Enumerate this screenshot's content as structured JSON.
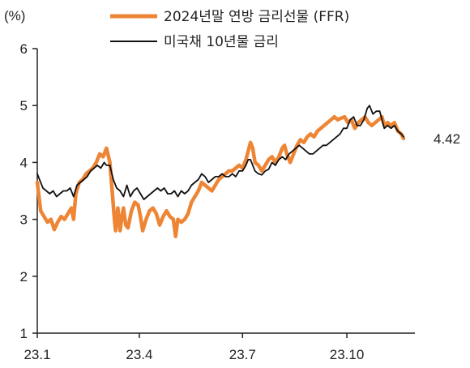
{
  "chart_data": {
    "type": "line",
    "title": "",
    "unit_label": "(%)",
    "xlabel": "",
    "ylabel": "",
    "ylim": [
      1,
      6
    ],
    "yticks": [
      1,
      2,
      3,
      4,
      5,
      6
    ],
    "xlim": [
      "2023-01-01",
      "2023-11-30"
    ],
    "xticks": [
      {
        "label": "23.1",
        "date": "2023-01-01"
      },
      {
        "label": "23.4",
        "date": "2023-04-01"
      },
      {
        "label": "23.7",
        "date": "2023-07-01"
      },
      {
        "label": "23.10",
        "date": "2023-10-01"
      }
    ],
    "grid": false,
    "legend_position": "top-center",
    "end_label": "4.42",
    "series": [
      {
        "name": "2024년말 연방 금리선물 (FFR)",
        "color": "#ee8535",
        "points": [
          [
            "2023-01-01",
            3.65
          ],
          [
            "2023-01-04",
            3.15
          ],
          [
            "2023-01-07",
            3.05
          ],
          [
            "2023-01-10",
            2.95
          ],
          [
            "2023-01-13",
            3.0
          ],
          [
            "2023-01-16",
            2.82
          ],
          [
            "2023-01-19",
            2.95
          ],
          [
            "2023-01-22",
            3.05
          ],
          [
            "2023-01-25",
            3.0
          ],
          [
            "2023-01-28",
            3.1
          ],
          [
            "2023-01-31",
            3.2
          ],
          [
            "2023-02-02",
            3.0
          ],
          [
            "2023-02-04",
            3.45
          ],
          [
            "2023-02-07",
            3.65
          ],
          [
            "2023-02-10",
            3.7
          ],
          [
            "2023-02-13",
            3.8
          ],
          [
            "2023-02-16",
            3.85
          ],
          [
            "2023-02-19",
            3.9
          ],
          [
            "2023-02-22",
            4.0
          ],
          [
            "2023-02-25",
            4.15
          ],
          [
            "2023-02-28",
            4.1
          ],
          [
            "2023-03-03",
            4.25
          ],
          [
            "2023-03-06",
            4.0
          ],
          [
            "2023-03-08",
            3.5
          ],
          [
            "2023-03-10",
            3.0
          ],
          [
            "2023-03-11",
            2.8
          ],
          [
            "2023-03-13",
            3.2
          ],
          [
            "2023-03-15",
            2.8
          ],
          [
            "2023-03-17",
            3.1
          ],
          [
            "2023-03-18",
            3.2
          ],
          [
            "2023-03-20",
            2.9
          ],
          [
            "2023-03-22",
            2.85
          ],
          [
            "2023-03-25",
            3.15
          ],
          [
            "2023-03-28",
            3.3
          ],
          [
            "2023-03-31",
            3.25
          ],
          [
            "2023-04-02",
            3.05
          ],
          [
            "2023-04-04",
            2.8
          ],
          [
            "2023-04-07",
            3.0
          ],
          [
            "2023-04-10",
            3.15
          ],
          [
            "2023-04-13",
            3.2
          ],
          [
            "2023-04-16",
            3.1
          ],
          [
            "2023-04-19",
            2.9
          ],
          [
            "2023-04-22",
            3.05
          ],
          [
            "2023-04-25",
            3.15
          ],
          [
            "2023-04-28",
            3.05
          ],
          [
            "2023-05-01",
            3.0
          ],
          [
            "2023-05-03",
            2.7
          ],
          [
            "2023-05-05",
            3.0
          ],
          [
            "2023-05-08",
            2.95
          ],
          [
            "2023-05-11",
            3.0
          ],
          [
            "2023-05-14",
            3.1
          ],
          [
            "2023-05-17",
            3.3
          ],
          [
            "2023-05-20",
            3.4
          ],
          [
            "2023-05-23",
            3.5
          ],
          [
            "2023-05-26",
            3.65
          ],
          [
            "2023-05-29",
            3.6
          ],
          [
            "2023-06-01",
            3.55
          ],
          [
            "2023-06-04",
            3.5
          ],
          [
            "2023-06-07",
            3.6
          ],
          [
            "2023-06-10",
            3.7
          ],
          [
            "2023-06-13",
            3.75
          ],
          [
            "2023-06-16",
            3.8
          ],
          [
            "2023-06-19",
            3.85
          ],
          [
            "2023-06-22",
            3.85
          ],
          [
            "2023-06-25",
            3.9
          ],
          [
            "2023-06-28",
            3.95
          ],
          [
            "2023-07-01",
            3.9
          ],
          [
            "2023-07-04",
            4.05
          ],
          [
            "2023-07-06",
            4.2
          ],
          [
            "2023-07-08",
            4.35
          ],
          [
            "2023-07-10",
            4.25
          ],
          [
            "2023-07-12",
            4.0
          ],
          [
            "2023-07-15",
            3.95
          ],
          [
            "2023-07-18",
            3.85
          ],
          [
            "2023-07-21",
            3.95
          ],
          [
            "2023-07-24",
            4.05
          ],
          [
            "2023-07-27",
            4.1
          ],
          [
            "2023-07-30",
            4.0
          ],
          [
            "2023-08-02",
            4.1
          ],
          [
            "2023-08-05",
            4.25
          ],
          [
            "2023-08-07",
            4.3
          ],
          [
            "2023-08-09",
            4.15
          ],
          [
            "2023-08-12",
            4.0
          ],
          [
            "2023-08-15",
            4.15
          ],
          [
            "2023-08-18",
            4.3
          ],
          [
            "2023-08-21",
            4.4
          ],
          [
            "2023-08-24",
            4.35
          ],
          [
            "2023-08-27",
            4.45
          ],
          [
            "2023-08-30",
            4.5
          ],
          [
            "2023-09-02",
            4.45
          ],
          [
            "2023-09-05",
            4.55
          ],
          [
            "2023-09-08",
            4.6
          ],
          [
            "2023-09-11",
            4.65
          ],
          [
            "2023-09-14",
            4.7
          ],
          [
            "2023-09-17",
            4.75
          ],
          [
            "2023-09-20",
            4.8
          ],
          [
            "2023-09-23",
            4.75
          ],
          [
            "2023-09-26",
            4.78
          ],
          [
            "2023-09-29",
            4.8
          ],
          [
            "2023-10-02",
            4.7
          ],
          [
            "2023-10-05",
            4.75
          ],
          [
            "2023-10-08",
            4.6
          ],
          [
            "2023-10-11",
            4.7
          ],
          [
            "2023-10-14",
            4.75
          ],
          [
            "2023-10-17",
            4.8
          ],
          [
            "2023-10-20",
            4.7
          ],
          [
            "2023-10-23",
            4.65
          ],
          [
            "2023-10-26",
            4.7
          ],
          [
            "2023-10-29",
            4.75
          ],
          [
            "2023-11-01",
            4.8
          ],
          [
            "2023-11-03",
            4.65
          ],
          [
            "2023-11-06",
            4.7
          ],
          [
            "2023-11-09",
            4.65
          ],
          [
            "2023-11-12",
            4.7
          ],
          [
            "2023-11-15",
            4.55
          ],
          [
            "2023-11-18",
            4.5
          ],
          [
            "2023-11-20",
            4.42
          ]
        ]
      },
      {
        "name": "미국채 10년물 금리",
        "color": "#111111",
        "points": [
          [
            "2023-01-01",
            3.8
          ],
          [
            "2023-01-03",
            3.7
          ],
          [
            "2023-01-06",
            3.55
          ],
          [
            "2023-01-09",
            3.5
          ],
          [
            "2023-01-12",
            3.45
          ],
          [
            "2023-01-15",
            3.5
          ],
          [
            "2023-01-18",
            3.4
          ],
          [
            "2023-01-21",
            3.45
          ],
          [
            "2023-01-24",
            3.5
          ],
          [
            "2023-01-27",
            3.5
          ],
          [
            "2023-01-30",
            3.55
          ],
          [
            "2023-02-02",
            3.4
          ],
          [
            "2023-02-05",
            3.6
          ],
          [
            "2023-02-08",
            3.65
          ],
          [
            "2023-02-11",
            3.7
          ],
          [
            "2023-02-14",
            3.75
          ],
          [
            "2023-02-17",
            3.85
          ],
          [
            "2023-02-20",
            3.9
          ],
          [
            "2023-02-23",
            3.95
          ],
          [
            "2023-02-26",
            3.9
          ],
          [
            "2023-03-01",
            4.0
          ],
          [
            "2023-03-03",
            3.95
          ],
          [
            "2023-03-06",
            3.95
          ],
          [
            "2023-03-09",
            3.7
          ],
          [
            "2023-03-12",
            3.55
          ],
          [
            "2023-03-15",
            3.5
          ],
          [
            "2023-03-18",
            3.4
          ],
          [
            "2023-03-21",
            3.6
          ],
          [
            "2023-03-24",
            3.4
          ],
          [
            "2023-03-27",
            3.5
          ],
          [
            "2023-03-30",
            3.55
          ],
          [
            "2023-04-02",
            3.45
          ],
          [
            "2023-04-05",
            3.35
          ],
          [
            "2023-04-08",
            3.4
          ],
          [
            "2023-04-11",
            3.45
          ],
          [
            "2023-04-14",
            3.5
          ],
          [
            "2023-04-17",
            3.55
          ],
          [
            "2023-04-20",
            3.5
          ],
          [
            "2023-04-23",
            3.55
          ],
          [
            "2023-04-26",
            3.45
          ],
          [
            "2023-04-29",
            3.45
          ],
          [
            "2023-05-02",
            3.5
          ],
          [
            "2023-05-05",
            3.4
          ],
          [
            "2023-05-08",
            3.5
          ],
          [
            "2023-05-11",
            3.45
          ],
          [
            "2023-05-14",
            3.5
          ],
          [
            "2023-05-17",
            3.6
          ],
          [
            "2023-05-20",
            3.65
          ],
          [
            "2023-05-23",
            3.7
          ],
          [
            "2023-05-26",
            3.8
          ],
          [
            "2023-05-29",
            3.75
          ],
          [
            "2023-06-01",
            3.65
          ],
          [
            "2023-06-04",
            3.7
          ],
          [
            "2023-06-07",
            3.75
          ],
          [
            "2023-06-10",
            3.75
          ],
          [
            "2023-06-13",
            3.8
          ],
          [
            "2023-06-16",
            3.75
          ],
          [
            "2023-06-19",
            3.75
          ],
          [
            "2023-06-22",
            3.8
          ],
          [
            "2023-06-25",
            3.75
          ],
          [
            "2023-06-28",
            3.85
          ],
          [
            "2023-07-01",
            3.85
          ],
          [
            "2023-07-04",
            3.95
          ],
          [
            "2023-07-06",
            4.05
          ],
          [
            "2023-07-08",
            4.05
          ],
          [
            "2023-07-10",
            3.95
          ],
          [
            "2023-07-12",
            3.85
          ],
          [
            "2023-07-15",
            3.8
          ],
          [
            "2023-07-18",
            3.78
          ],
          [
            "2023-07-21",
            3.85
          ],
          [
            "2023-07-24",
            3.88
          ],
          [
            "2023-07-27",
            4.0
          ],
          [
            "2023-07-30",
            3.95
          ],
          [
            "2023-08-02",
            4.05
          ],
          [
            "2023-08-05",
            4.1
          ],
          [
            "2023-08-08",
            4.05
          ],
          [
            "2023-08-11",
            4.15
          ],
          [
            "2023-08-14",
            4.2
          ],
          [
            "2023-08-17",
            4.25
          ],
          [
            "2023-08-20",
            4.3
          ],
          [
            "2023-08-23",
            4.25
          ],
          [
            "2023-08-26",
            4.2
          ],
          [
            "2023-08-29",
            4.15
          ],
          [
            "2023-09-01",
            4.15
          ],
          [
            "2023-09-04",
            4.2
          ],
          [
            "2023-09-07",
            4.25
          ],
          [
            "2023-09-10",
            4.3
          ],
          [
            "2023-09-13",
            4.3
          ],
          [
            "2023-09-16",
            4.35
          ],
          [
            "2023-09-19",
            4.4
          ],
          [
            "2023-09-22",
            4.45
          ],
          [
            "2023-09-25",
            4.5
          ],
          [
            "2023-09-28",
            4.6
          ],
          [
            "2023-10-01",
            4.6
          ],
          [
            "2023-10-04",
            4.75
          ],
          [
            "2023-10-07",
            4.8
          ],
          [
            "2023-10-10",
            4.65
          ],
          [
            "2023-10-13",
            4.65
          ],
          [
            "2023-10-16",
            4.75
          ],
          [
            "2023-10-19",
            4.95
          ],
          [
            "2023-10-21",
            5.0
          ],
          [
            "2023-10-24",
            4.85
          ],
          [
            "2023-10-27",
            4.9
          ],
          [
            "2023-10-30",
            4.9
          ],
          [
            "2023-11-01",
            4.75
          ],
          [
            "2023-11-03",
            4.6
          ],
          [
            "2023-11-06",
            4.65
          ],
          [
            "2023-11-09",
            4.6
          ],
          [
            "2023-11-12",
            4.65
          ],
          [
            "2023-11-15",
            4.55
          ],
          [
            "2023-11-18",
            4.5
          ],
          [
            "2023-11-20",
            4.45
          ]
        ]
      }
    ]
  }
}
